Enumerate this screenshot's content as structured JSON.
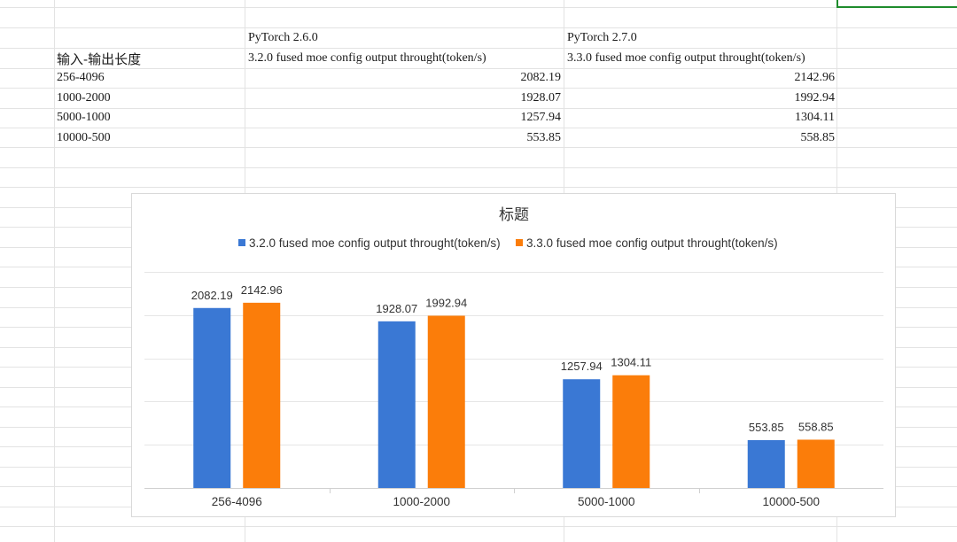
{
  "sheet": {
    "header_row1": {
      "col_b": "PyTorch 2.6.0",
      "col_c": "PyTorch 2.7.0"
    },
    "header_row2": {
      "col_a": "输入-输出长度",
      "col_b": "3.2.0 fused moe config output throught(token/s)",
      "col_c": "3.3.0 fused moe config output throught(token/s)"
    },
    "rows": [
      {
        "len": "256-4096",
        "v1": "2082.19",
        "v2": "2142.96"
      },
      {
        "len": "1000-2000",
        "v1": "1928.07",
        "v2": "1992.94"
      },
      {
        "len": "5000-1000",
        "v1": "1257.94",
        "v2": "1304.11"
      },
      {
        "len": "10000-500",
        "v1": "553.85",
        "v2": "558.85"
      }
    ]
  },
  "colors": {
    "series1": "#3a78d4",
    "series2": "#fb7d0a",
    "gridline": "#e6e6e6",
    "cellline": "#e3e3e3",
    "selection": "#1e8c2c"
  },
  "chart_data": {
    "type": "bar",
    "title": "标题",
    "categories": [
      "256-4096",
      "1000-2000",
      "5000-1000",
      "10000-500"
    ],
    "series": [
      {
        "name": "3.2.0 fused moe config output throught(token/s)",
        "values": [
          2082.19,
          1928.07,
          1257.94,
          553.85
        ]
      },
      {
        "name": "3.3.0 fused moe config output throught(token/s)",
        "values": [
          2142.96,
          1992.94,
          1304.11,
          558.85
        ]
      }
    ],
    "ylim": [
      0,
      2500
    ],
    "grid": true,
    "legend": "top"
  }
}
